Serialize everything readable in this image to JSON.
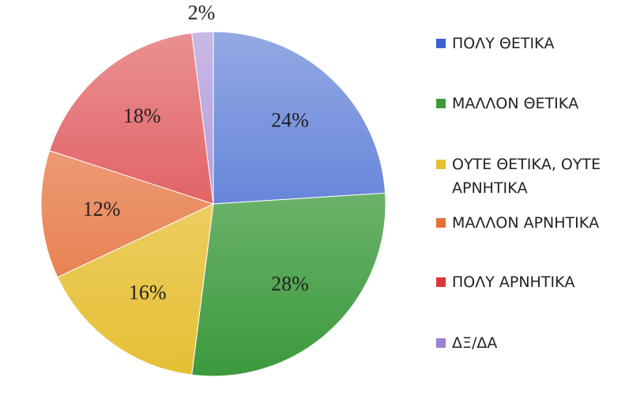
{
  "chart_data": {
    "type": "pie",
    "categories": [
      "ΠΟΛΥ ΘΕΤΙΚΑ",
      "ΜΑΛΛΟΝ ΘΕΤΙΚΑ",
      "ΟΥΤΕ ΘΕΤΙΚΑ, ΟΥΤΕ ΑΡΝΗΤΙΚΑ",
      "ΜΑΛΛΟΝ ΑΡΝΗΤΙΚΑ",
      "ΠΟΛΥ ΑΡΝΗΤΙΚΑ",
      "ΔΞ/ΔΑ"
    ],
    "values": [
      24,
      28,
      16,
      12,
      18,
      2
    ],
    "value_labels": [
      "24%",
      "28%",
      "16%",
      "12%",
      "18%",
      "2%"
    ],
    "colors": [
      "#3b63cf",
      "#3c9a3c",
      "#e6bf33",
      "#e5703a",
      "#d9363a",
      "#9c80d2"
    ]
  }
}
